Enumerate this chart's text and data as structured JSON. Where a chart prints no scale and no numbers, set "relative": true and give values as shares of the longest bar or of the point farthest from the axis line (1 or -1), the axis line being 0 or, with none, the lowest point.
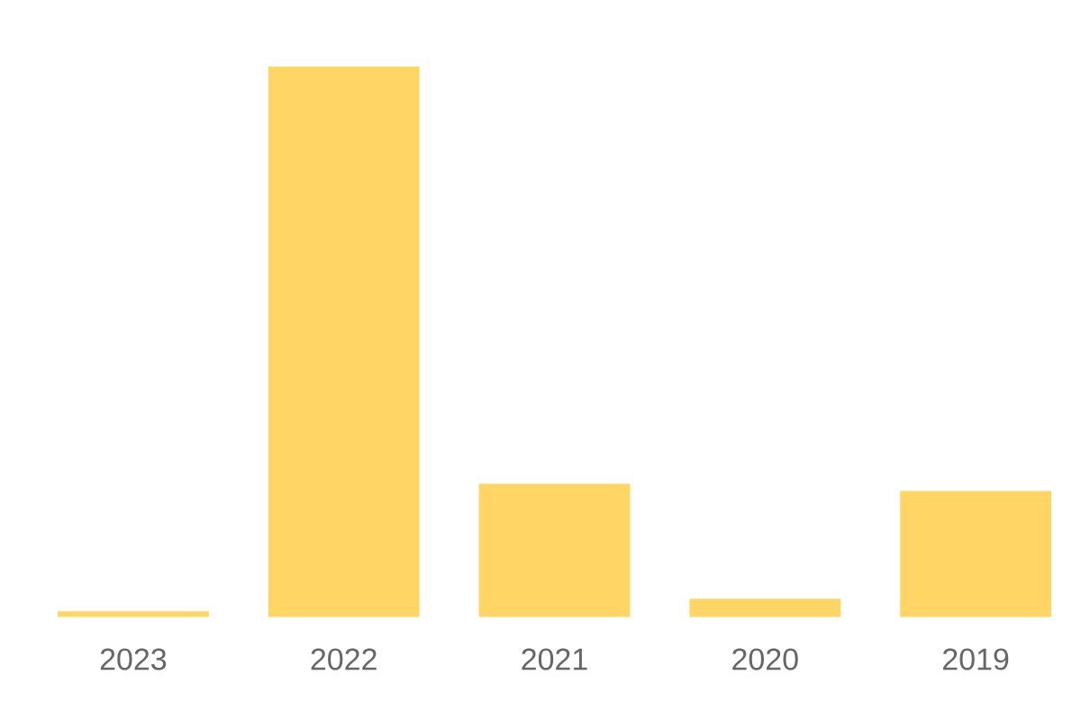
{
  "chart_data": {
    "type": "bar",
    "relative": true,
    "categories": [
      "2023",
      "2022",
      "2021",
      "2020",
      "2019"
    ],
    "values": [
      0.01,
      1,
      0.242,
      0.033,
      0.229
    ],
    "color": "#ffd666"
  }
}
